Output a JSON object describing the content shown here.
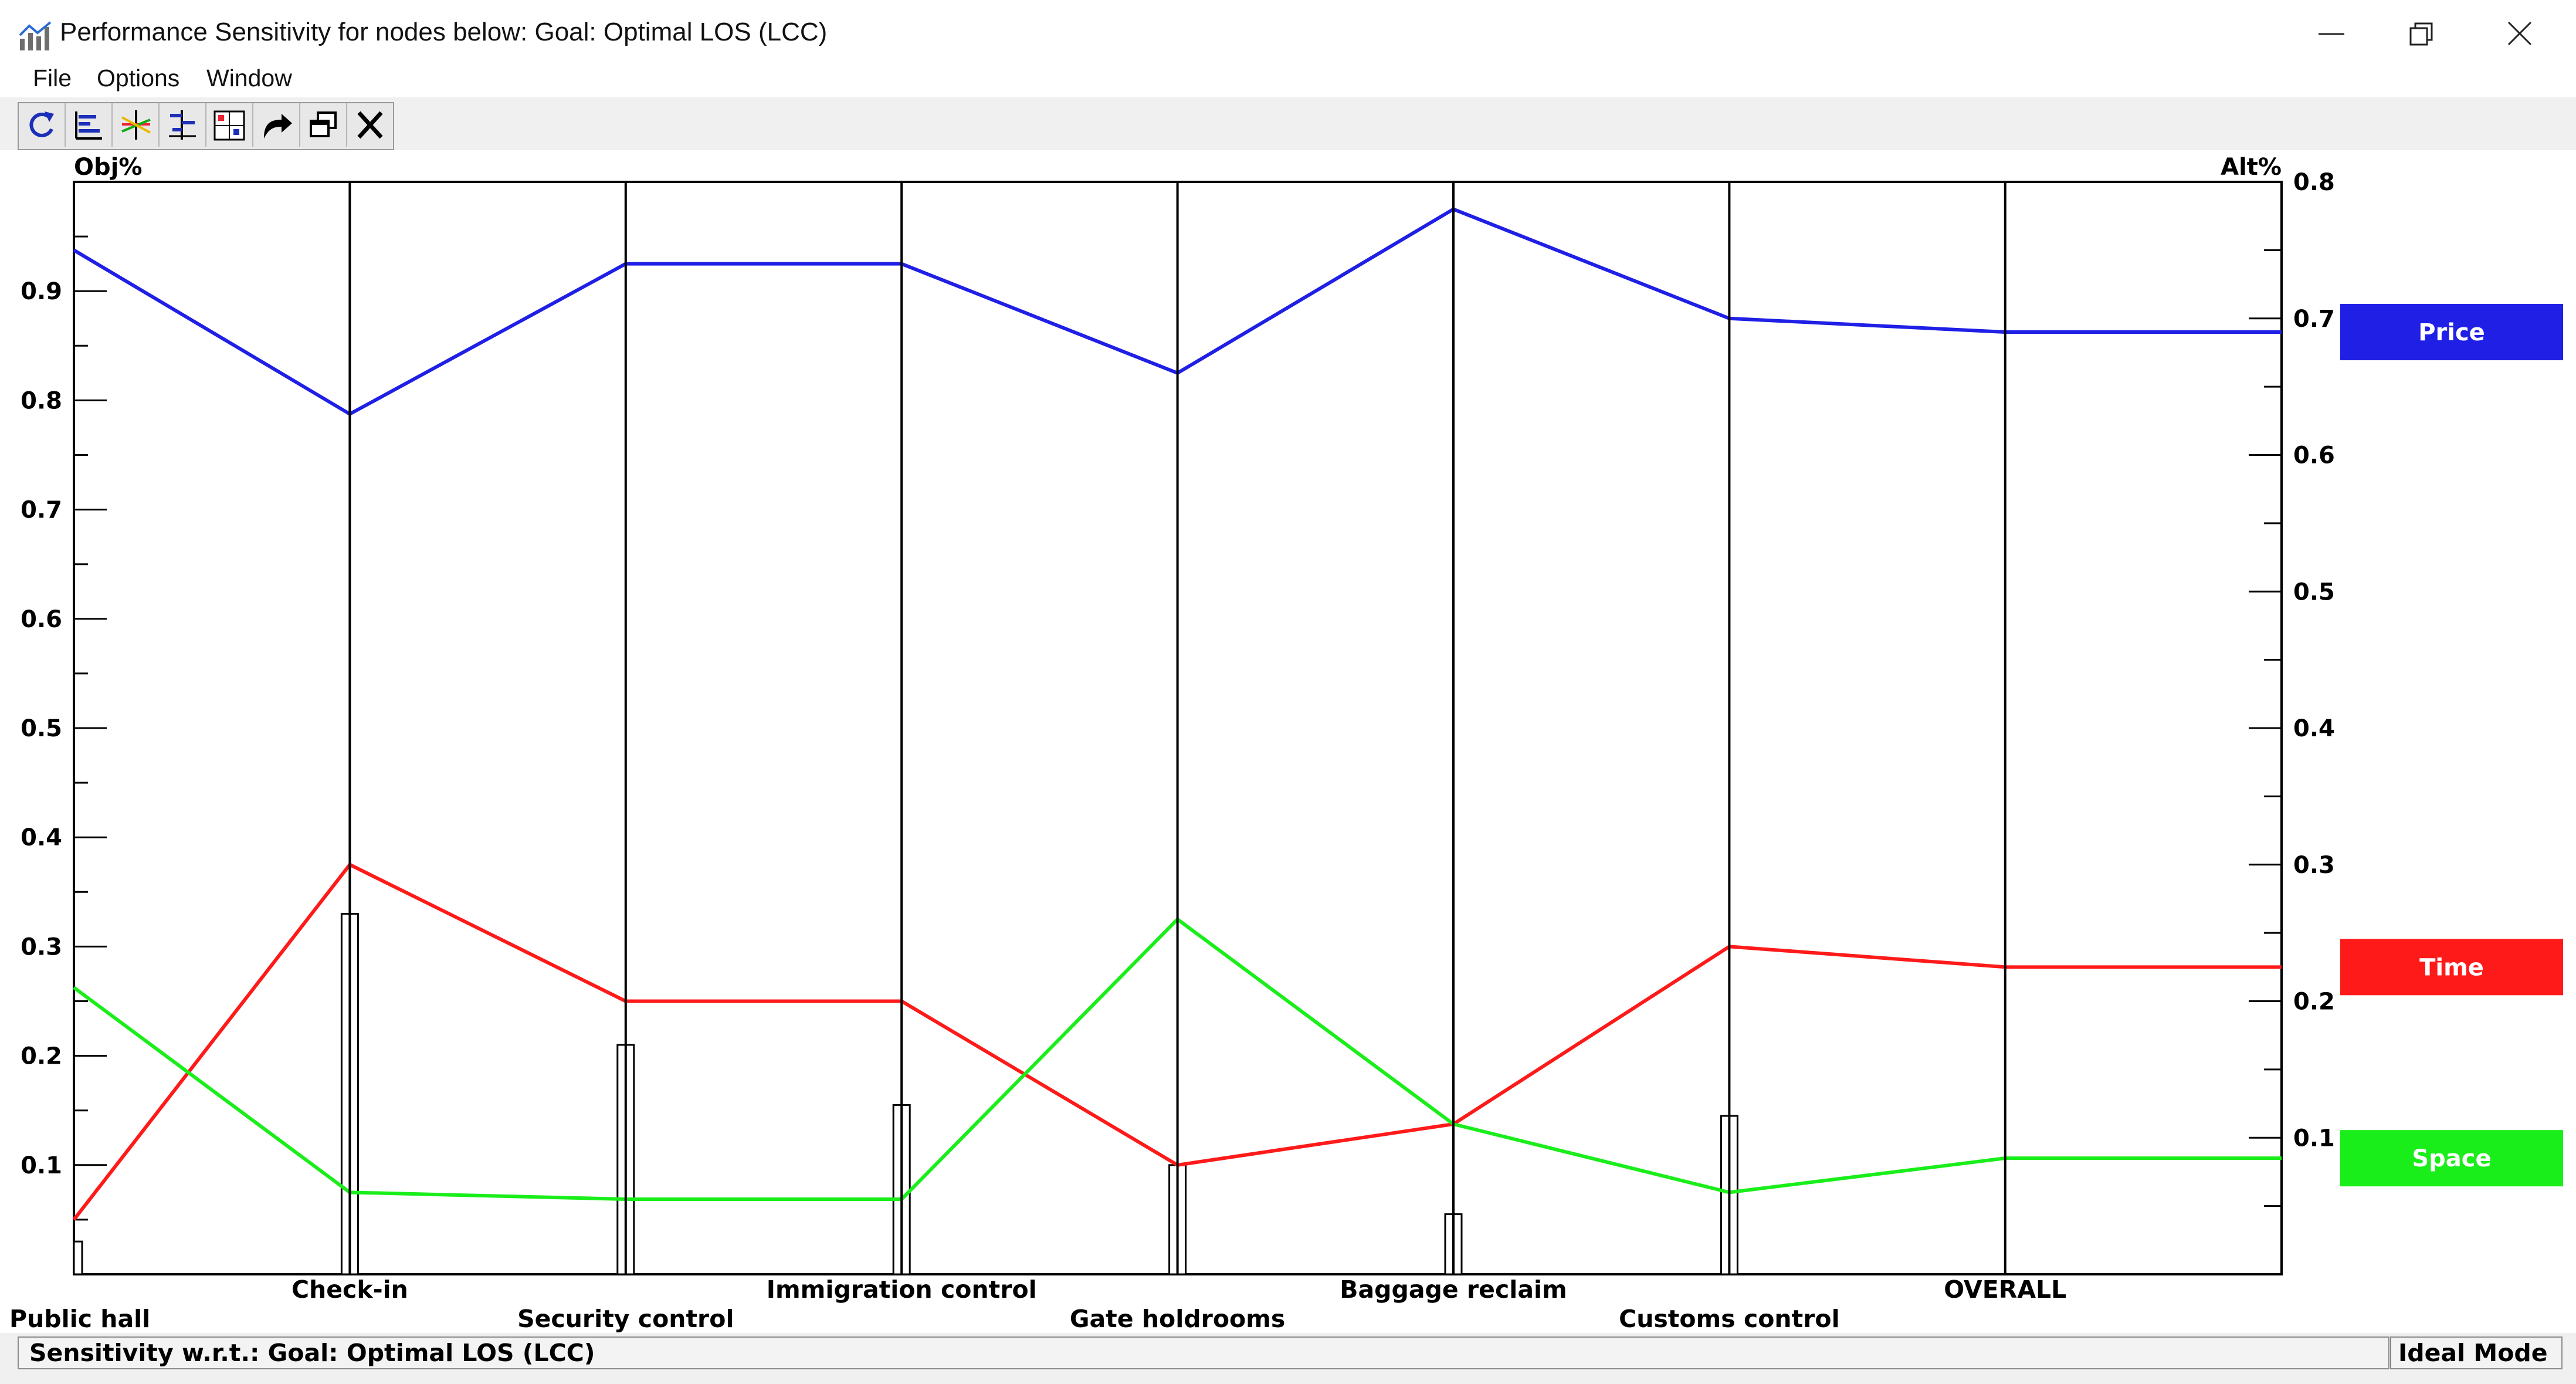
{
  "window": {
    "title": "Performance Sensitivity for nodes below: Goal: Optimal LOS (LCC)",
    "icon": "chart-app-icon",
    "controls": [
      "minimize-icon",
      "maximize-icon",
      "close-icon"
    ]
  },
  "menu": {
    "file": "File",
    "options": "Options",
    "window": "Window"
  },
  "toolbar": {
    "icons": [
      "refresh-icon",
      "bar-chart-icon",
      "gradient-icon",
      "head-to-head-icon",
      "two-d-plot-icon",
      "redo-icon",
      "cascade-windows-icon",
      "close-icon"
    ]
  },
  "colors": {
    "price": "#1f1fe6",
    "time": "#ff1a1a",
    "space": "#1aee1a"
  },
  "chart_data": {
    "type": "line",
    "left_axis_title": "Obj%",
    "right_axis_title": "Alt%",
    "left_axis": {
      "range": [
        0,
        1.0
      ],
      "ticks": [
        "0.1",
        "0.2",
        "0.3",
        "0.4",
        "0.5",
        "0.6",
        "0.7",
        "0.8",
        "0.9"
      ]
    },
    "right_axis": {
      "range": [
        0,
        0.8
      ],
      "ticks": [
        "0.1",
        "0.2",
        "0.3",
        "0.4",
        "0.5",
        "0.6",
        "0.7",
        "0.8"
      ]
    },
    "categories": [
      "Public hall",
      "Check-in",
      "Security control",
      "Immigration control",
      "Gate holdrooms",
      "Baggage reclaim",
      "Customs control",
      "OVERALL"
    ],
    "objective_weights": [
      0.03,
      0.33,
      0.21,
      0.155,
      0.1,
      0.055,
      0.145
    ],
    "series": [
      {
        "name": "Price",
        "color": "#1f1fe6",
        "values": [
          0.75,
          0.63,
          0.74,
          0.74,
          0.66,
          0.78,
          0.7,
          0.69
        ]
      },
      {
        "name": "Time",
        "color": "#ff1a1a",
        "values": [
          0.04,
          0.3,
          0.2,
          0.2,
          0.08,
          0.11,
          0.24,
          0.225
        ]
      },
      {
        "name": "Space",
        "color": "#1aee1a",
        "values": [
          0.21,
          0.06,
          0.055,
          0.055,
          0.26,
          0.11,
          0.06,
          0.085
        ]
      }
    ],
    "legend": [
      "Price",
      "Time",
      "Space"
    ],
    "legend_position": "right"
  },
  "status": {
    "left": "Sensitivity w.r.t.: Goal: Optimal LOS (LCC)",
    "right": "Ideal Mode"
  }
}
